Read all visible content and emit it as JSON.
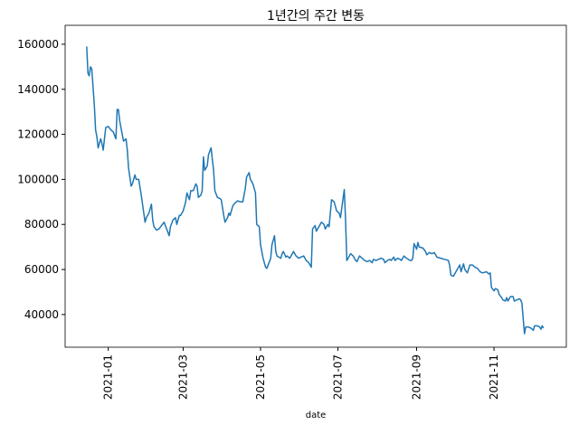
{
  "chart_data": {
    "type": "line",
    "title": "1년간의 주간 변동",
    "x_label": "date",
    "x": [
      "2020-12-15",
      "2020-12-16",
      "2020-12-17",
      "2020-12-18",
      "2020-12-19",
      "2020-12-21",
      "2020-12-22",
      "2020-12-23",
      "2020-12-24",
      "2020-12-26",
      "2020-12-27",
      "2020-12-28",
      "2020-12-30",
      "2021-01-01",
      "2021-01-03",
      "2021-01-05",
      "2021-01-07",
      "2021-01-08",
      "2021-01-09",
      "2021-01-10",
      "2021-01-12",
      "2021-01-13",
      "2021-01-15",
      "2021-01-16",
      "2021-01-17",
      "2021-01-19",
      "2021-01-20",
      "2021-01-22",
      "2021-01-23",
      "2021-01-25",
      "2021-01-27",
      "2021-01-28",
      "2021-01-30",
      "2021-01-31",
      "2021-02-02",
      "2021-02-04",
      "2021-02-05",
      "2021-02-06",
      "2021-02-08",
      "2021-02-10",
      "2021-02-12",
      "2021-02-14",
      "2021-02-16",
      "2021-02-18",
      "2021-02-19",
      "2021-02-21",
      "2021-02-23",
      "2021-02-24",
      "2021-02-26",
      "2021-02-27",
      "2021-03-01",
      "2021-03-03",
      "2021-03-04",
      "2021-03-06",
      "2021-03-07",
      "2021-03-09",
      "2021-03-11",
      "2021-03-12",
      "2021-03-13",
      "2021-03-15",
      "2021-03-16",
      "2021-03-17",
      "2021-03-18",
      "2021-03-20",
      "2021-03-21",
      "2021-03-23",
      "2021-03-25",
      "2021-03-26",
      "2021-03-28",
      "2021-03-30",
      "2021-03-31",
      "2021-04-02",
      "2021-04-03",
      "2021-04-05",
      "2021-04-06",
      "2021-04-07",
      "2021-04-09",
      "2021-04-10",
      "2021-04-13",
      "2021-04-15",
      "2021-04-17",
      "2021-04-19",
      "2021-04-20",
      "2021-04-22",
      "2021-04-23",
      "2021-04-25",
      "2021-04-27",
      "2021-04-28",
      "2021-04-30",
      "2021-05-01",
      "2021-05-03",
      "2021-05-05",
      "2021-05-06",
      "2021-05-07",
      "2021-05-09",
      "2021-05-10",
      "2021-05-12",
      "2021-05-13",
      "2021-05-14",
      "2021-05-17",
      "2021-05-18",
      "2021-05-19",
      "2021-05-21",
      "2021-05-22",
      "2021-05-24",
      "2021-05-26",
      "2021-05-27",
      "2021-05-29",
      "2021-05-31",
      "2021-06-02",
      "2021-06-04",
      "2021-06-06",
      "2021-06-08",
      "2021-06-10",
      "2021-06-11",
      "2021-06-13",
      "2021-06-14",
      "2021-06-16",
      "2021-06-18",
      "2021-06-20",
      "2021-06-21",
      "2021-06-23",
      "2021-06-24",
      "2021-06-26",
      "2021-06-28",
      "2021-06-30",
      "2021-07-02",
      "2021-07-03",
      "2021-07-06",
      "2021-07-07",
      "2021-07-08",
      "2021-07-11",
      "2021-07-13",
      "2021-07-15",
      "2021-07-16",
      "2021-07-18",
      "2021-07-20",
      "2021-07-22",
      "2021-07-24",
      "2021-07-26",
      "2021-07-28",
      "2021-07-29",
      "2021-07-31",
      "2021-08-02",
      "2021-08-04",
      "2021-08-06",
      "2021-08-07",
      "2021-08-09",
      "2021-08-11",
      "2021-08-12",
      "2021-08-14",
      "2021-08-15",
      "2021-08-17",
      "2021-08-19",
      "2021-08-20",
      "2021-08-22",
      "2021-08-24",
      "2021-08-27",
      "2021-08-28",
      "2021-08-29",
      "2021-08-30",
      "2021-09-01",
      "2021-09-02",
      "2021-09-03",
      "2021-09-06",
      "2021-09-08",
      "2021-09-09",
      "2021-09-11",
      "2021-09-13",
      "2021-09-15",
      "2021-09-17",
      "2021-09-20",
      "2021-09-23",
      "2021-09-26",
      "2021-09-27",
      "2021-09-28",
      "2021-09-30",
      "2021-10-02",
      "2021-10-03",
      "2021-10-05",
      "2021-10-06",
      "2021-10-08",
      "2021-10-09",
      "2021-10-11",
      "2021-10-13",
      "2021-10-15",
      "2021-10-17",
      "2021-10-19",
      "2021-10-21",
      "2021-10-23",
      "2021-10-26",
      "2021-10-28",
      "2021-10-29",
      "2021-10-30",
      "2021-11-01",
      "2021-11-02",
      "2021-11-04",
      "2021-11-05",
      "2021-11-07",
      "2021-11-08",
      "2021-11-10",
      "2021-11-11",
      "2021-11-12",
      "2021-11-14",
      "2021-11-16",
      "2021-11-17",
      "2021-11-19",
      "2021-11-21",
      "2021-11-22",
      "2021-11-23",
      "2021-11-25",
      "2021-11-26",
      "2021-11-28",
      "2021-11-30",
      "2021-12-02",
      "2021-12-03",
      "2021-12-05",
      "2021-12-07",
      "2021-12-08",
      "2021-12-09",
      "2021-12-10"
    ],
    "series": [
      {
        "color": "#1f77b4",
        "values": [
          159000,
          147000,
          146000,
          150000,
          149000,
          133000,
          122000,
          119000,
          114000,
          118000,
          116000,
          113000,
          123000,
          123500,
          122000,
          121000,
          118000,
          131000,
          131000,
          126000,
          120000,
          117000,
          118000,
          113000,
          105000,
          97000,
          98000,
          102000,
          100000,
          100000,
          93000,
          89000,
          81000,
          83000,
          85000,
          89000,
          82000,
          79000,
          77500,
          78000,
          79500,
          81000,
          78000,
          75000,
          79000,
          82000,
          83000,
          80000,
          84000,
          84000,
          86000,
          90000,
          94000,
          91000,
          95000,
          95000,
          98000,
          97000,
          92000,
          93000,
          95000,
          110000,
          104000,
          106000,
          111000,
          114000,
          104000,
          95000,
          92000,
          91500,
          91000,
          84000,
          81000,
          83000,
          85000,
          84000,
          88000,
          89000,
          90500,
          90000,
          90000,
          96000,
          101000,
          103000,
          100000,
          98000,
          94000,
          80000,
          79000,
          71000,
          65000,
          61000,
          60500,
          62000,
          65000,
          71000,
          75000,
          68000,
          66000,
          65000,
          67000,
          68000,
          65500,
          66000,
          65000,
          67000,
          68000,
          66000,
          65000,
          65500,
          66000,
          64000,
          63000,
          61000,
          78000,
          79500,
          77000,
          79000,
          81000,
          80000,
          78000,
          80000,
          79000,
          91000,
          90000,
          86000,
          85000,
          83000,
          95500,
          82000,
          64000,
          67000,
          66000,
          64000,
          63500,
          66000,
          65000,
          64000,
          63500,
          64000,
          63000,
          64500,
          64000,
          64500,
          65000,
          64500,
          63000,
          64000,
          64500,
          64000,
          65500,
          64000,
          65000,
          64500,
          64000,
          66000,
          65000,
          64000,
          64000,
          65000,
          71500,
          69000,
          72000,
          70000,
          69500,
          68000,
          66500,
          67500,
          67000,
          67500,
          65500,
          65000,
          64500,
          64000,
          62000,
          57500,
          57000,
          59000,
          60000,
          62000,
          59000,
          62500,
          60000,
          58500,
          62000,
          62000,
          61000,
          60500,
          59000,
          58500,
          59000,
          58000,
          58500,
          52000,
          50500,
          51500,
          51000,
          49000,
          47500,
          46500,
          46000,
          47500,
          46000,
          48000,
          48000,
          46000,
          46500,
          47000,
          46500,
          45000,
          31500,
          34500,
          34500,
          34000,
          33000,
          35000,
          35000,
          34500,
          33500,
          35000,
          34000
        ]
      }
    ],
    "xlim": [
      "2020-11-28",
      "2021-12-28"
    ],
    "xticks": [
      {
        "value": "2021-01-01",
        "label": "2021-01"
      },
      {
        "value": "2021-03-01",
        "label": "2021-03"
      },
      {
        "value": "2021-05-01",
        "label": "2021-05"
      },
      {
        "value": "2021-07-01",
        "label": "2021-07"
      },
      {
        "value": "2021-09-01",
        "label": "2021-09"
      },
      {
        "value": "2021-11-01",
        "label": "2021-11"
      }
    ],
    "ylim": [
      25500,
      168400
    ],
    "yticks": [
      40000,
      60000,
      80000,
      100000,
      120000,
      140000,
      160000
    ]
  }
}
